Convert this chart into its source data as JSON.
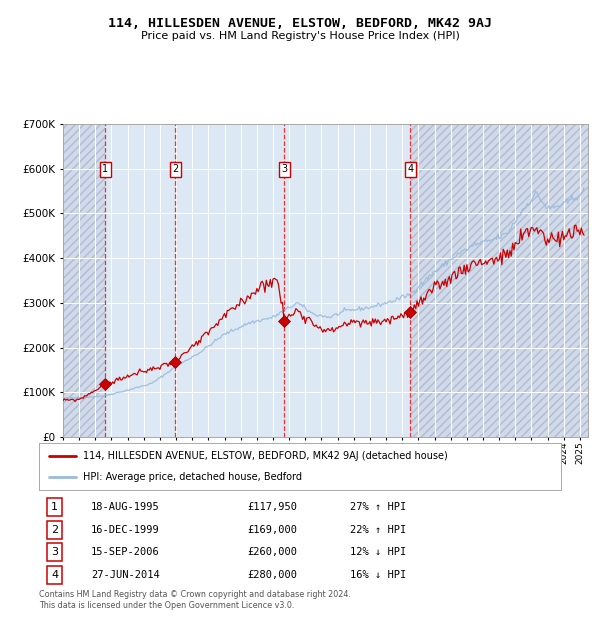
{
  "title": "114, HILLESDEN AVENUE, ELSTOW, BEDFORD, MK42 9AJ",
  "subtitle": "Price paid vs. HM Land Registry's House Price Index (HPI)",
  "legend_house": "114, HILLESDEN AVENUE, ELSTOW, BEDFORD, MK42 9AJ (detached house)",
  "legend_hpi": "HPI: Average price, detached house, Bedford",
  "footer1": "Contains HM Land Registry data © Crown copyright and database right 2024.",
  "footer2": "This data is licensed under the Open Government Licence v3.0.",
  "transactions": [
    {
      "num": 1,
      "date": "18-AUG-1995",
      "price": 117950,
      "pct": "27%",
      "dir": "↑",
      "year": 1995.62
    },
    {
      "num": 2,
      "date": "16-DEC-1999",
      "price": 169000,
      "pct": "22%",
      "dir": "↑",
      "year": 1999.95
    },
    {
      "num": 3,
      "date": "15-SEP-2006",
      "price": 260000,
      "pct": "12%",
      "dir": "↓",
      "year": 2006.71
    },
    {
      "num": 4,
      "date": "27-JUN-2014",
      "price": 280000,
      "pct": "16%",
      "dir": "↓",
      "year": 2014.49
    }
  ],
  "plot_bg": "#e8eef8",
  "hatch_bg": "#d0daea",
  "red_line_color": "#cc0000",
  "blue_line_color": "#99bbdd",
  "dashed_color": "#ee3333",
  "marker_color": "#cc0000",
  "xlim_left": 1993.0,
  "xlim_right": 2025.5,
  "ylim_bottom": 0,
  "ylim_top": 700000,
  "hpi_anchors": [
    [
      1993.0,
      87000
    ],
    [
      1994.0,
      88000
    ],
    [
      1995.5,
      92000
    ],
    [
      1997.0,
      105000
    ],
    [
      1998.5,
      120000
    ],
    [
      2000.0,
      158000
    ],
    [
      2001.5,
      190000
    ],
    [
      2003.0,
      230000
    ],
    [
      2004.5,
      255000
    ],
    [
      2006.0,
      268000
    ],
    [
      2007.5,
      300000
    ],
    [
      2008.5,
      275000
    ],
    [
      2009.5,
      268000
    ],
    [
      2010.5,
      282000
    ],
    [
      2012.0,
      290000
    ],
    [
      2013.5,
      305000
    ],
    [
      2014.5,
      320000
    ],
    [
      2016.0,
      370000
    ],
    [
      2017.5,
      410000
    ],
    [
      2018.5,
      430000
    ],
    [
      2019.5,
      440000
    ],
    [
      2020.5,
      455000
    ],
    [
      2021.5,
      510000
    ],
    [
      2022.3,
      545000
    ],
    [
      2023.0,
      510000
    ],
    [
      2024.0,
      520000
    ],
    [
      2025.3,
      550000
    ]
  ],
  "red_anchors": [
    [
      1993.0,
      82000
    ],
    [
      1994.0,
      84000
    ],
    [
      1995.62,
      117950
    ],
    [
      1997.0,
      136000
    ],
    [
      1998.5,
      152000
    ],
    [
      1999.95,
      169000
    ],
    [
      2001.5,
      215000
    ],
    [
      2003.0,
      270000
    ],
    [
      2004.5,
      315000
    ],
    [
      2005.5,
      345000
    ],
    [
      2006.3,
      350000
    ],
    [
      2006.71,
      260000
    ],
    [
      2007.5,
      285000
    ],
    [
      2008.5,
      255000
    ],
    [
      2009.5,
      235000
    ],
    [
      2010.5,
      255000
    ],
    [
      2012.0,
      255000
    ],
    [
      2013.5,
      265000
    ],
    [
      2014.49,
      280000
    ],
    [
      2016.0,
      330000
    ],
    [
      2017.5,
      370000
    ],
    [
      2018.5,
      390000
    ],
    [
      2019.5,
      395000
    ],
    [
      2020.5,
      405000
    ],
    [
      2021.5,
      450000
    ],
    [
      2022.3,
      470000
    ],
    [
      2023.0,
      440000
    ],
    [
      2024.0,
      450000
    ],
    [
      2025.3,
      460000
    ]
  ]
}
